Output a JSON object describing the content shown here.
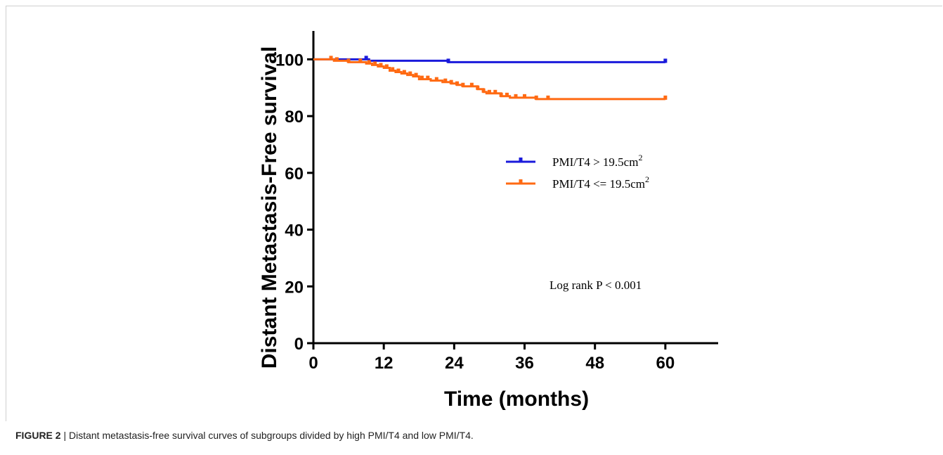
{
  "caption": {
    "label": "FIGURE 2",
    "separator": "|",
    "text": "Distant metastasis-free survival curves of subgroups divided by high PMI/T4 and low PMI/T4."
  },
  "chart_data": {
    "type": "line",
    "title": "",
    "xlabel": "Time (months)",
    "ylabel": "Distant Metastasis-Free survival",
    "xlim": [
      0,
      69
    ],
    "ylim": [
      0,
      110
    ],
    "xticks": [
      0,
      12,
      24,
      36,
      48,
      60
    ],
    "yticks": [
      0,
      20,
      40,
      60,
      80,
      100
    ],
    "grid": false,
    "legend_position": "right",
    "annotation": "Log rank P < 0.001",
    "series": [
      {
        "name": "PMI/T4 > 19.5cm",
        "name_superscript": "2",
        "color": "#1a1adb",
        "steps": [
          [
            0,
            100
          ],
          [
            9.5,
            100
          ],
          [
            9.5,
            99.5
          ],
          [
            23,
            99.5
          ],
          [
            23,
            99
          ],
          [
            60,
            99
          ]
        ],
        "censored": [
          9,
          23,
          60
        ]
      },
      {
        "name": "PMI/T4 <= 19.5cm",
        "name_superscript": "2",
        "color": "#ff6a13",
        "steps": [
          [
            0,
            100
          ],
          [
            3.5,
            100
          ],
          [
            3.5,
            99.5
          ],
          [
            6,
            99.5
          ],
          [
            6,
            99
          ],
          [
            9,
            99
          ],
          [
            9,
            98.5
          ],
          [
            10,
            98.5
          ],
          [
            10,
            98
          ],
          [
            11,
            98
          ],
          [
            11,
            97.5
          ],
          [
            12,
            97.5
          ],
          [
            12,
            97
          ],
          [
            13,
            97
          ],
          [
            13,
            96
          ],
          [
            14,
            96
          ],
          [
            14,
            95.5
          ],
          [
            15,
            95.5
          ],
          [
            15,
            95
          ],
          [
            16,
            95
          ],
          [
            16,
            94.5
          ],
          [
            17,
            94.5
          ],
          [
            17,
            94
          ],
          [
            18,
            94
          ],
          [
            18,
            93
          ],
          [
            20,
            93
          ],
          [
            20,
            92.5
          ],
          [
            22,
            92.5
          ],
          [
            22,
            92
          ],
          [
            23.5,
            92
          ],
          [
            23.5,
            91.5
          ],
          [
            24.5,
            91.5
          ],
          [
            24.5,
            91
          ],
          [
            25.5,
            91
          ],
          [
            25.5,
            90.5
          ],
          [
            28,
            90.5
          ],
          [
            28,
            89.5
          ],
          [
            29,
            89.5
          ],
          [
            29,
            88.5
          ],
          [
            29.5,
            88.5
          ],
          [
            29.5,
            88
          ],
          [
            32,
            88
          ],
          [
            32,
            87
          ],
          [
            33.5,
            87
          ],
          [
            33.5,
            86.5
          ],
          [
            38,
            86.5
          ],
          [
            38,
            86
          ],
          [
            60,
            86
          ]
        ],
        "censored": [
          3,
          4,
          6,
          8,
          9.5,
          10.5,
          11.5,
          12.5,
          13.5,
          14.5,
          15.5,
          16.5,
          17.5,
          18.5,
          19.5,
          21,
          22.5,
          23.5,
          24.5,
          25.5,
          27,
          28,
          29,
          30,
          31,
          32,
          33,
          34.5,
          36,
          38,
          40,
          60
        ]
      }
    ]
  }
}
